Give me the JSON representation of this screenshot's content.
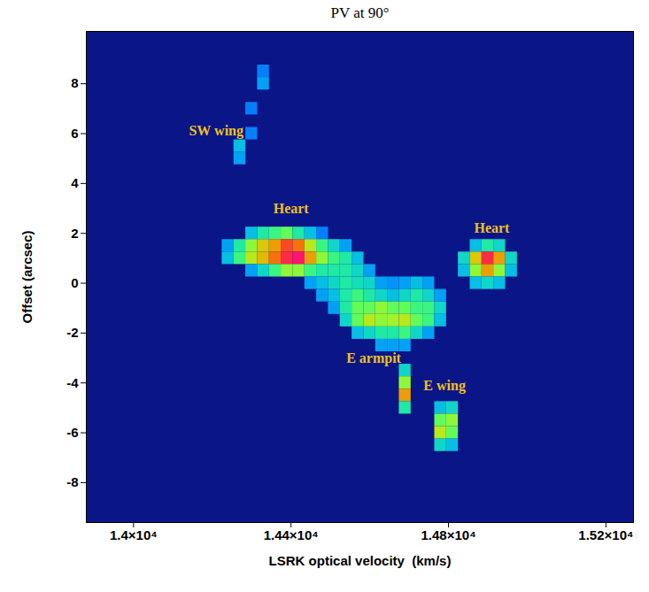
{
  "chart_data": {
    "type": "heatmap",
    "title": "PV at 90°",
    "x_label": "LSRK optical velocity  (km/s)",
    "y_label": "Offset (arcsec)",
    "xlim": [
      13880,
      15270
    ],
    "ylim": [
      -9.6,
      10.1
    ],
    "xticks": [
      {
        "value": 14000,
        "label": "1.4×10⁴"
      },
      {
        "value": 14400,
        "label": "1.44×10⁴"
      },
      {
        "value": 14800,
        "label": "1.48×10⁴"
      },
      {
        "value": 15200,
        "label": "1.52×10⁴"
      }
    ],
    "yticks": [
      -8,
      -6,
      -4,
      -2,
      0,
      2,
      4,
      6,
      8
    ],
    "zlim": [
      0,
      1
    ],
    "dx": 30,
    "dy": 0.5,
    "cells": [
      [
        14300,
        2.0,
        0.35
      ],
      [
        14330,
        2.0,
        0.45
      ],
      [
        14360,
        2.0,
        0.5
      ],
      [
        14390,
        2.0,
        0.55
      ],
      [
        14420,
        2.0,
        0.45
      ],
      [
        14450,
        2.0,
        0.35
      ],
      [
        14480,
        2.0,
        0.25
      ],
      [
        14240,
        1.5,
        0.3
      ],
      [
        14270,
        1.5,
        0.45
      ],
      [
        14300,
        1.5,
        0.6
      ],
      [
        14330,
        1.5,
        0.7
      ],
      [
        14360,
        1.5,
        0.75
      ],
      [
        14390,
        1.5,
        0.85
      ],
      [
        14420,
        1.5,
        0.8
      ],
      [
        14450,
        1.5,
        0.65
      ],
      [
        14480,
        1.5,
        0.5
      ],
      [
        14510,
        1.5,
        0.4
      ],
      [
        14540,
        1.5,
        0.3
      ],
      [
        14240,
        1.0,
        0.35
      ],
      [
        14270,
        1.0,
        0.5
      ],
      [
        14300,
        1.0,
        0.65
      ],
      [
        14330,
        1.0,
        0.72
      ],
      [
        14360,
        1.0,
        0.8
      ],
      [
        14390,
        1.0,
        0.9
      ],
      [
        14420,
        1.0,
        0.95
      ],
      [
        14450,
        1.0,
        0.75
      ],
      [
        14480,
        1.0,
        0.6
      ],
      [
        14510,
        1.0,
        0.5
      ],
      [
        14540,
        1.0,
        0.45
      ],
      [
        14570,
        1.0,
        0.35
      ],
      [
        14300,
        0.5,
        0.3
      ],
      [
        14330,
        0.5,
        0.4
      ],
      [
        14360,
        0.5,
        0.5
      ],
      [
        14390,
        0.5,
        0.6
      ],
      [
        14420,
        0.5,
        0.6
      ],
      [
        14450,
        0.5,
        0.5
      ],
      [
        14480,
        0.5,
        0.45
      ],
      [
        14510,
        0.5,
        0.45
      ],
      [
        14540,
        0.5,
        0.45
      ],
      [
        14570,
        0.5,
        0.4
      ],
      [
        14600,
        0.5,
        0.3
      ],
      [
        14450,
        0.0,
        0.3
      ],
      [
        14480,
        0.0,
        0.35
      ],
      [
        14510,
        0.0,
        0.4
      ],
      [
        14540,
        0.0,
        0.45
      ],
      [
        14570,
        0.0,
        0.42
      ],
      [
        14600,
        0.0,
        0.4
      ],
      [
        14630,
        0.0,
        0.3
      ],
      [
        14660,
        0.0,
        0.28
      ],
      [
        14690,
        0.0,
        0.3
      ],
      [
        14720,
        0.0,
        0.35
      ],
      [
        14750,
        0.0,
        0.3
      ],
      [
        14480,
        -0.5,
        0.3
      ],
      [
        14510,
        -0.5,
        0.35
      ],
      [
        14540,
        -0.5,
        0.45
      ],
      [
        14570,
        -0.5,
        0.5
      ],
      [
        14600,
        -0.5,
        0.45
      ],
      [
        14630,
        -0.5,
        0.4
      ],
      [
        14660,
        -0.5,
        0.35
      ],
      [
        14690,
        -0.5,
        0.4
      ],
      [
        14720,
        -0.5,
        0.45
      ],
      [
        14750,
        -0.5,
        0.4
      ],
      [
        14780,
        -0.5,
        0.3
      ],
      [
        14510,
        -1.0,
        0.3
      ],
      [
        14540,
        -1.0,
        0.45
      ],
      [
        14570,
        -1.0,
        0.55
      ],
      [
        14600,
        -1.0,
        0.55
      ],
      [
        14630,
        -1.0,
        0.6
      ],
      [
        14660,
        -1.0,
        0.55
      ],
      [
        14690,
        -1.0,
        0.55
      ],
      [
        14720,
        -1.0,
        0.5
      ],
      [
        14750,
        -1.0,
        0.5
      ],
      [
        14780,
        -1.0,
        0.4
      ],
      [
        14540,
        -1.5,
        0.4
      ],
      [
        14570,
        -1.5,
        0.55
      ],
      [
        14600,
        -1.5,
        0.65
      ],
      [
        14630,
        -1.5,
        0.6
      ],
      [
        14660,
        -1.5,
        0.62
      ],
      [
        14690,
        -1.5,
        0.65
      ],
      [
        14720,
        -1.5,
        0.55
      ],
      [
        14750,
        -1.5,
        0.5
      ],
      [
        14780,
        -1.5,
        0.35
      ],
      [
        14570,
        -2.0,
        0.35
      ],
      [
        14600,
        -2.0,
        0.4
      ],
      [
        14630,
        -2.0,
        0.45
      ],
      [
        14660,
        -2.0,
        0.45
      ],
      [
        14690,
        -2.0,
        0.5
      ],
      [
        14720,
        -2.0,
        0.4
      ],
      [
        14750,
        -2.0,
        0.3
      ],
      [
        14630,
        -2.5,
        0.3
      ],
      [
        14660,
        -2.5,
        0.3
      ],
      [
        14690,
        -2.5,
        0.3
      ],
      [
        14690,
        -3.5,
        0.4
      ],
      [
        14690,
        -4.0,
        0.6
      ],
      [
        14690,
        -4.5,
        0.75
      ],
      [
        14690,
        -5.0,
        0.45
      ],
      [
        14780,
        -5.0,
        0.35
      ],
      [
        14810,
        -5.0,
        0.4
      ],
      [
        14780,
        -5.5,
        0.55
      ],
      [
        14810,
        -5.5,
        0.6
      ],
      [
        14780,
        -6.0,
        0.65
      ],
      [
        14810,
        -6.0,
        0.55
      ],
      [
        14780,
        -6.5,
        0.4
      ],
      [
        14810,
        -6.5,
        0.35
      ],
      [
        14870,
        1.5,
        0.35
      ],
      [
        14900,
        1.5,
        0.45
      ],
      [
        14930,
        1.5,
        0.4
      ],
      [
        14840,
        1.0,
        0.4
      ],
      [
        14870,
        1.0,
        0.7
      ],
      [
        14900,
        1.0,
        0.9
      ],
      [
        14930,
        1.0,
        0.75
      ],
      [
        14960,
        1.0,
        0.4
      ],
      [
        14840,
        0.5,
        0.35
      ],
      [
        14870,
        0.5,
        0.6
      ],
      [
        14900,
        0.5,
        0.75
      ],
      [
        14930,
        0.5,
        0.6
      ],
      [
        14960,
        0.5,
        0.35
      ],
      [
        14870,
        0.0,
        0.35
      ],
      [
        14900,
        0.0,
        0.4
      ],
      [
        14930,
        0.0,
        0.35
      ],
      [
        14270,
        5.0,
        0.3
      ],
      [
        14270,
        5.5,
        0.35
      ],
      [
        14300,
        6.0,
        0.25
      ],
      [
        14300,
        7.0,
        0.25
      ],
      [
        14330,
        8.0,
        0.3
      ],
      [
        14330,
        8.5,
        0.25
      ]
    ],
    "annotations": [
      {
        "text": "SW wing",
        "x": 14210,
        "y": 6.1
      },
      {
        "text": "Heart",
        "x": 14400,
        "y": 3.0
      },
      {
        "text": "Heart",
        "x": 14910,
        "y": 2.2
      },
      {
        "text": "E armpit",
        "x": 14610,
        "y": -3.0
      },
      {
        "text": "E wing",
        "x": 14790,
        "y": -4.1
      }
    ]
  }
}
